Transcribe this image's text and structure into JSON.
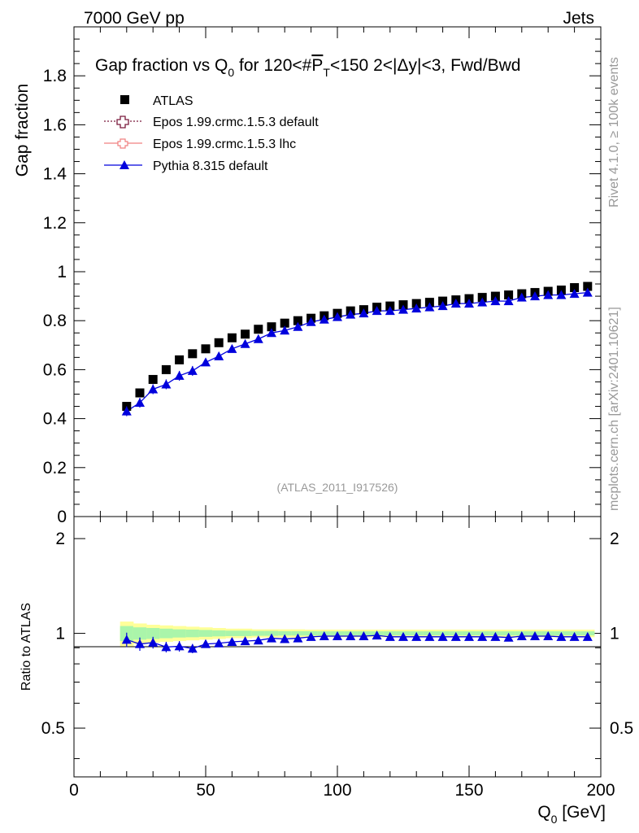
{
  "header": {
    "left": "7000 GeV pp",
    "right": "Jets",
    "title_main": "Gap fraction vs Q",
    "title_sub0": "0",
    "title_mid": " for 120<#",
    "title_p": "P",
    "title_subT": "T",
    "title_end": "<150  2<|Δy|<3, Fwd/Bwd",
    "watermark": "(ATLAS_2011_I917526)"
  },
  "side_labels": {
    "rivet": "Rivet 4.1.0, ≥ 100k events",
    "mcplots": "mcplots.cern.ch [arXiv:2401.10621]"
  },
  "legend": [
    {
      "label": "ATLAS",
      "marker": "square",
      "color": "#000000"
    },
    {
      "label": "Epos 1.99.crmc.1.5.3 default",
      "marker": "open-cross",
      "color": "#7a1a3c"
    },
    {
      "label": "Epos 1.99.crmc.1.5.3 lhc",
      "marker": "cross-line",
      "color": "#f08080"
    },
    {
      "label": "Pythia 8.315 default",
      "marker": "triangle",
      "color": "#0000dd"
    }
  ],
  "chart_data": {
    "type": "line",
    "title": "Gap fraction vs Q0 for 120<#PT<150  2<|Δy|<3, Fwd/Bwd",
    "xlabel_main": "Q",
    "xlabel_sub": "0",
    "xlabel_unit": " [GeV]",
    "ylabel": "Gap fraction",
    "ratio_ylabel": "Ratio to ATLAS",
    "xlim": [
      0,
      200
    ],
    "ylim": [
      0,
      2.0
    ],
    "ratio_ylim": [
      0.35,
      2.35
    ],
    "x_ticks": [
      "0",
      "50",
      "100",
      "150",
      "200"
    ],
    "y_ticks": [
      "0",
      "0.2",
      "0.4",
      "0.6",
      "0.8",
      "1",
      "1.2",
      "1.4",
      "1.6",
      "1.8"
    ],
    "ratio_ticks": [
      "0.5",
      "1",
      "2"
    ],
    "x": [
      20,
      25,
      30,
      35,
      40,
      45,
      50,
      55,
      60,
      65,
      70,
      75,
      80,
      85,
      90,
      95,
      100,
      105,
      110,
      115,
      120,
      125,
      130,
      135,
      140,
      145,
      150,
      155,
      160,
      165,
      170,
      175,
      180,
      185,
      190,
      195
    ],
    "series": [
      {
        "name": "ATLAS",
        "values": [
          0.45,
          0.505,
          0.56,
          0.6,
          0.64,
          0.665,
          0.685,
          0.71,
          0.73,
          0.745,
          0.765,
          0.775,
          0.79,
          0.8,
          0.81,
          0.82,
          0.83,
          0.84,
          0.845,
          0.855,
          0.86,
          0.865,
          0.87,
          0.875,
          0.88,
          0.885,
          0.89,
          0.895,
          0.9,
          0.905,
          0.91,
          0.915,
          0.92,
          0.925,
          0.935,
          0.94
        ]
      },
      {
        "name": "Pythia 8.315 default",
        "values": [
          0.43,
          0.465,
          0.52,
          0.54,
          0.575,
          0.595,
          0.63,
          0.655,
          0.685,
          0.705,
          0.725,
          0.75,
          0.76,
          0.775,
          0.795,
          0.805,
          0.815,
          0.825,
          0.83,
          0.84,
          0.84,
          0.845,
          0.85,
          0.855,
          0.86,
          0.87,
          0.87,
          0.875,
          0.88,
          0.88,
          0.895,
          0.9,
          0.905,
          0.905,
          0.91,
          0.915
        ]
      }
    ],
    "pythia_errors": [
      0.02,
      0.02,
      0.02,
      0.02,
      0.02,
      0.02,
      0.015,
      0.015,
      0.015,
      0.015,
      0.012,
      0.012,
      0.01,
      0.01,
      0.01,
      0.01,
      0.01,
      0.01,
      0.01,
      0.01,
      0.01,
      0.008,
      0.008,
      0.008,
      0.008,
      0.008,
      0.008,
      0.008,
      0.008,
      0.008,
      0.008,
      0.008,
      0.008,
      0.008,
      0.008,
      0.008
    ],
    "ratio": [
      0.955,
      0.925,
      0.935,
      0.905,
      0.91,
      0.895,
      0.925,
      0.93,
      0.94,
      0.945,
      0.95,
      0.965,
      0.96,
      0.965,
      0.975,
      0.98,
      0.98,
      0.98,
      0.98,
      0.985,
      0.975,
      0.975,
      0.975,
      0.975,
      0.975,
      0.975,
      0.975,
      0.975,
      0.975,
      0.97,
      0.98,
      0.98,
      0.98,
      0.975,
      0.975,
      0.975
    ],
    "ratio_errors": [
      0.05,
      0.045,
      0.04,
      0.035,
      0.035,
      0.03,
      0.025,
      0.025,
      0.02,
      0.02,
      0.02,
      0.015,
      0.015,
      0.015,
      0.015,
      0.012,
      0.012,
      0.012,
      0.012,
      0.012,
      0.012,
      0.012,
      0.012,
      0.012,
      0.012,
      0.012,
      0.012,
      0.012,
      0.012,
      0.012,
      0.012,
      0.012,
      0.012,
      0.012,
      0.012,
      0.012
    ],
    "band_yellow": [
      0.09,
      0.075,
      0.065,
      0.06,
      0.055,
      0.05,
      0.045,
      0.04,
      0.035,
      0.035,
      0.03,
      0.03,
      0.03,
      0.03,
      0.028,
      0.028,
      0.028,
      0.028,
      0.028,
      0.028,
      0.028,
      0.028,
      0.028,
      0.028,
      0.028,
      0.028,
      0.028,
      0.028,
      0.028,
      0.028,
      0.028,
      0.028,
      0.028,
      0.028,
      0.028,
      0.028
    ],
    "band_green": [
      0.055,
      0.045,
      0.04,
      0.035,
      0.03,
      0.028,
      0.025,
      0.022,
      0.02,
      0.02,
      0.018,
      0.018,
      0.016,
      0.016,
      0.016,
      0.015,
      0.015,
      0.015,
      0.015,
      0.015,
      0.015,
      0.015,
      0.015,
      0.015,
      0.015,
      0.015,
      0.015,
      0.015,
      0.015,
      0.015,
      0.015,
      0.015,
      0.015,
      0.015,
      0.015,
      0.015
    ]
  }
}
